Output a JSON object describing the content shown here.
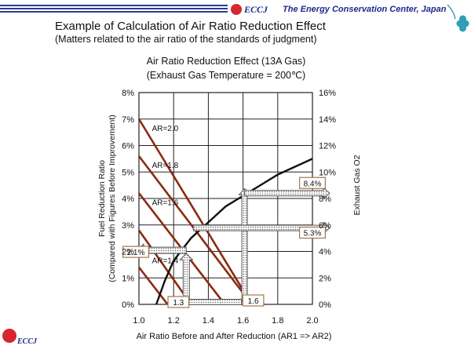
{
  "header": {
    "logo_text": "ECCJ",
    "org_name": "The Energy Conservation Center, Japan",
    "title": "Example of Calculation of Air Ratio Reduction Effect",
    "subtitle": "(Matters related to the air ratio of the standards of judgment)"
  },
  "footer": {
    "logo_text": "ECCJ"
  },
  "colors": {
    "brand_blue": "#1b2b8c",
    "logo_red": "#d8262e",
    "fuel_line": "#8b2a10",
    "o2_curve": "#111111",
    "annotation_box": "#a0784a"
  },
  "chart_data": {
    "type": "line",
    "title": "Air Ratio Reduction Effect (13A Gas)",
    "subtitle": "(Exhaust Gas Temperature = 200℃)",
    "xlabel": "Air Ratio Before and After Reduction (AR1 => AR2)",
    "ylabel_lines": [
      "Fuel Reduction Ratio",
      "(Compared with Figures Before Improvement)"
    ],
    "y2label": "Exhaust Gas O2",
    "xlim": [
      1.0,
      2.0
    ],
    "ylim": [
      0,
      8
    ],
    "y2lim": [
      0,
      16
    ],
    "x_ticks": [
      "1.0",
      "1.2",
      "1.4",
      "1.6",
      "1.8",
      "2.0"
    ],
    "y_ticks": [
      "0%",
      "1%",
      "2%",
      "3%",
      "4%",
      "5%",
      "6%",
      "7%",
      "8%"
    ],
    "y2_ticks": [
      "0%",
      "2%",
      "4%",
      "6%",
      "8%",
      "10%",
      "12%",
      "14%",
      "16%"
    ],
    "grid": true,
    "fuel_series": [
      {
        "name": "AR=2.0",
        "points": [
          [
            1.0,
            7.0
          ],
          [
            1.65,
            0.0
          ]
        ]
      },
      {
        "name": "AR=1.8",
        "points": [
          [
            1.0,
            5.6
          ],
          [
            1.65,
            0.0
          ]
        ]
      },
      {
        "name": "AR=1.6",
        "points": [
          [
            1.0,
            4.2
          ],
          [
            1.495,
            0.0
          ]
        ]
      },
      {
        "name": "AR=1.4",
        "points": [
          [
            1.0,
            2.8
          ],
          [
            1.3,
            0.0
          ]
        ]
      },
      {
        "name": "",
        "points": [
          [
            1.0,
            1.4
          ],
          [
            1.165,
            0.0
          ]
        ]
      }
    ],
    "o2_series": {
      "name": "Exhaust Gas O2",
      "points": [
        [
          1.1,
          0.0
        ],
        [
          1.15,
          1.8
        ],
        [
          1.2,
          3.3
        ],
        [
          1.3,
          5.0
        ],
        [
          1.4,
          6.2
        ],
        [
          1.5,
          7.4
        ],
        [
          1.6,
          8.2
        ],
        [
          1.7,
          9.0
        ],
        [
          1.8,
          9.8
        ],
        [
          1.9,
          10.4
        ],
        [
          2.0,
          11.0
        ]
      ]
    },
    "annotations": [
      {
        "text": "1.3",
        "x": 1.3,
        "y": 0
      },
      {
        "text": "1.6",
        "x": 1.6,
        "y": 0
      },
      {
        "text": "2.1%",
        "x": 1.0,
        "y": 2.1
      },
      {
        "text": "8.4%",
        "x": 2.0,
        "y2": 8.4
      },
      {
        "text": "5.3%",
        "x": 2.0,
        "y2": 5.3
      }
    ]
  }
}
